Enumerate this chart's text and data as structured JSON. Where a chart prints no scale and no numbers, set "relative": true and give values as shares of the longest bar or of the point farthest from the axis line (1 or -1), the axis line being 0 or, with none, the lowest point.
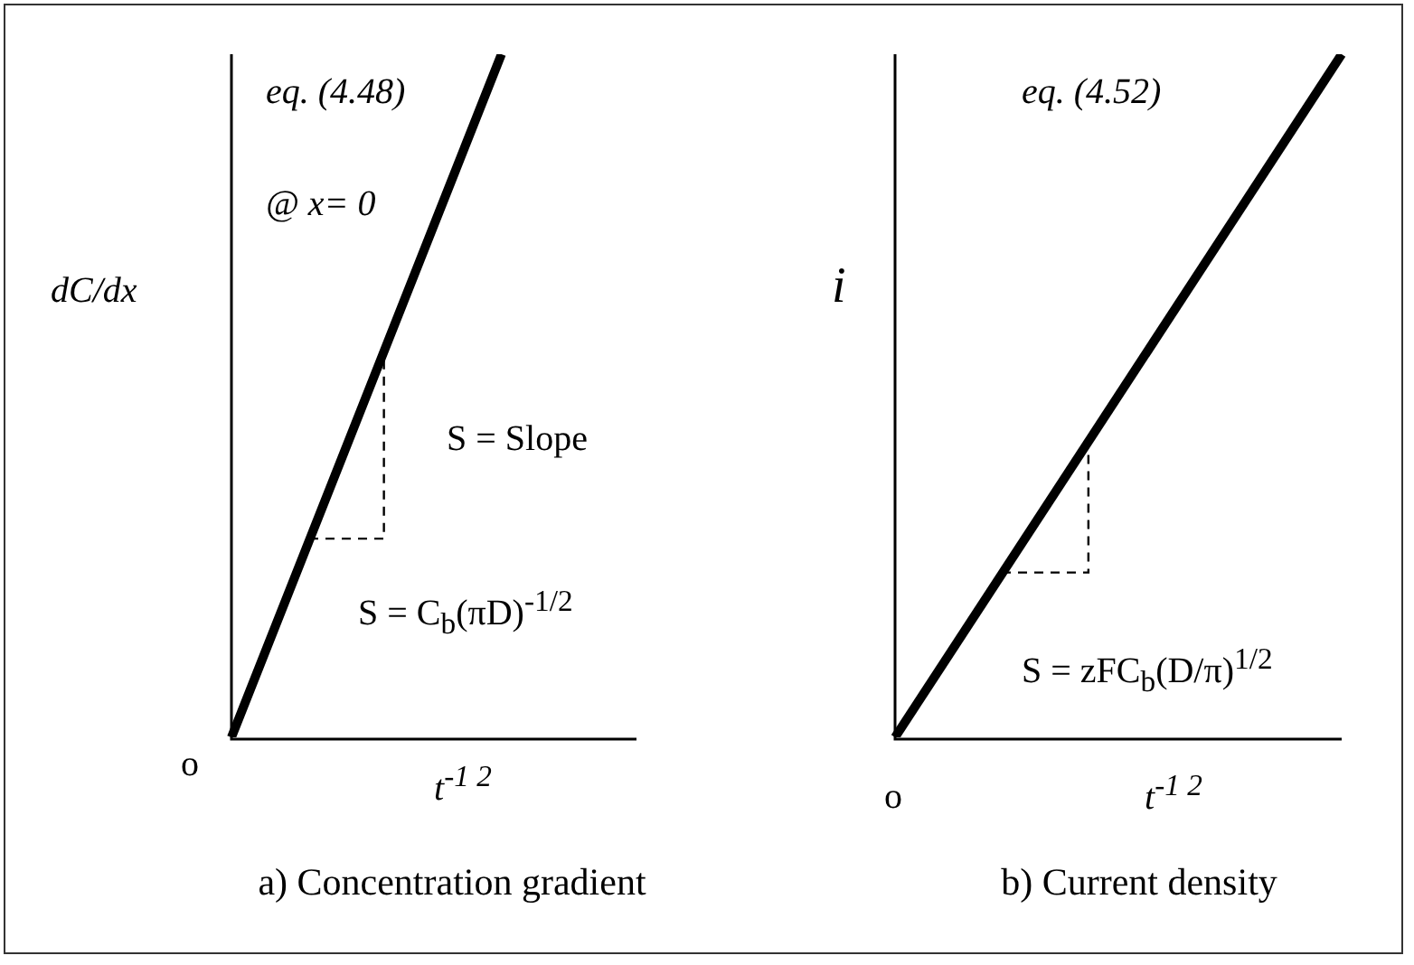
{
  "chart_data": [
    {
      "type": "line",
      "title": "a) Concentration gradient",
      "xlabel": "t$^{-1 2}$",
      "ylabel": "dC/dx",
      "relative": true,
      "categories": [
        null,
        null,
        null,
        null
      ],
      "values": [
        0,
        0.5,
        1,
        null
      ],
      "color": "#000000",
      "annotations": [
        "eq. (4.48)",
        "@ x= 0",
        "S =  Slope",
        "S =  C$_{b}$(πD)$^{-1/2}$",
        "o"
      ]
    },
    {
      "type": "line",
      "title": "b) Current density",
      "xlabel": "t$^{-1 2}$",
      "ylabel": "i",
      "relative": true,
      "categories": [
        null,
        null
      ],
      "values": [
        0,
        1
      ],
      "color": "#000000",
      "annotations": [
        "eq. (4.52)",
        "S =  zFC$_{b}$(D/π)$^{1/2}$",
        "o"
      ]
    }
  ]
}
